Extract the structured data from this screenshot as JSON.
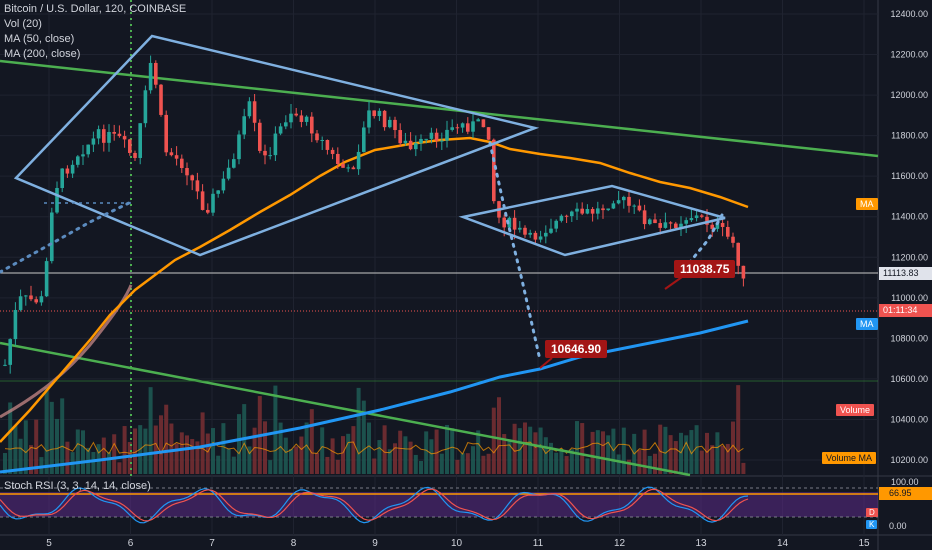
{
  "header": {
    "symbol_line": "Bitcoin / U.S. Dollar, 120, COINBASE",
    "indicators": [
      "Vol (20)",
      "MA (50, close)",
      "MA (200, close)"
    ],
    "rsi_label": "Stoch RSI (3, 3, 14, 14, close)"
  },
  "price_axis": {
    "ticks": [
      "12400.00",
      "12200.00",
      "12000.00",
      "11800.00",
      "11600.00",
      "11400.00",
      "11200.00",
      "11000.00",
      "10800.00",
      "10600.00",
      "10400.00",
      "10200.00"
    ],
    "current_price_label": "11113.83",
    "countdown_label": "01:11:34",
    "ma50_badge": "MA",
    "ma200_badge": "MA",
    "volume_badge": "Volume",
    "volume_ma_badge": "Volume MA"
  },
  "rsi_axis": {
    "ticks": [
      "100.00",
      "0.00"
    ],
    "value_label": "66.95",
    "d_badge": "D",
    "k_badge": "K"
  },
  "time_axis": {
    "labels": [
      "5",
      "6",
      "7",
      "8",
      "9",
      "10",
      "11",
      "12",
      "13",
      "14",
      "15"
    ]
  },
  "callouts": {
    "upper": "11038.75",
    "lower": "10646.90"
  },
  "colors": {
    "background": "#131722",
    "up": "#26a69a",
    "down": "#ef5350",
    "ma50": "#ff9800",
    "ma200": "#2196f3",
    "trendline": "#4caf50",
    "pattern": "#7fb0e0",
    "callout": "#a31515",
    "rsi_band": "#5b2a86"
  }
}
